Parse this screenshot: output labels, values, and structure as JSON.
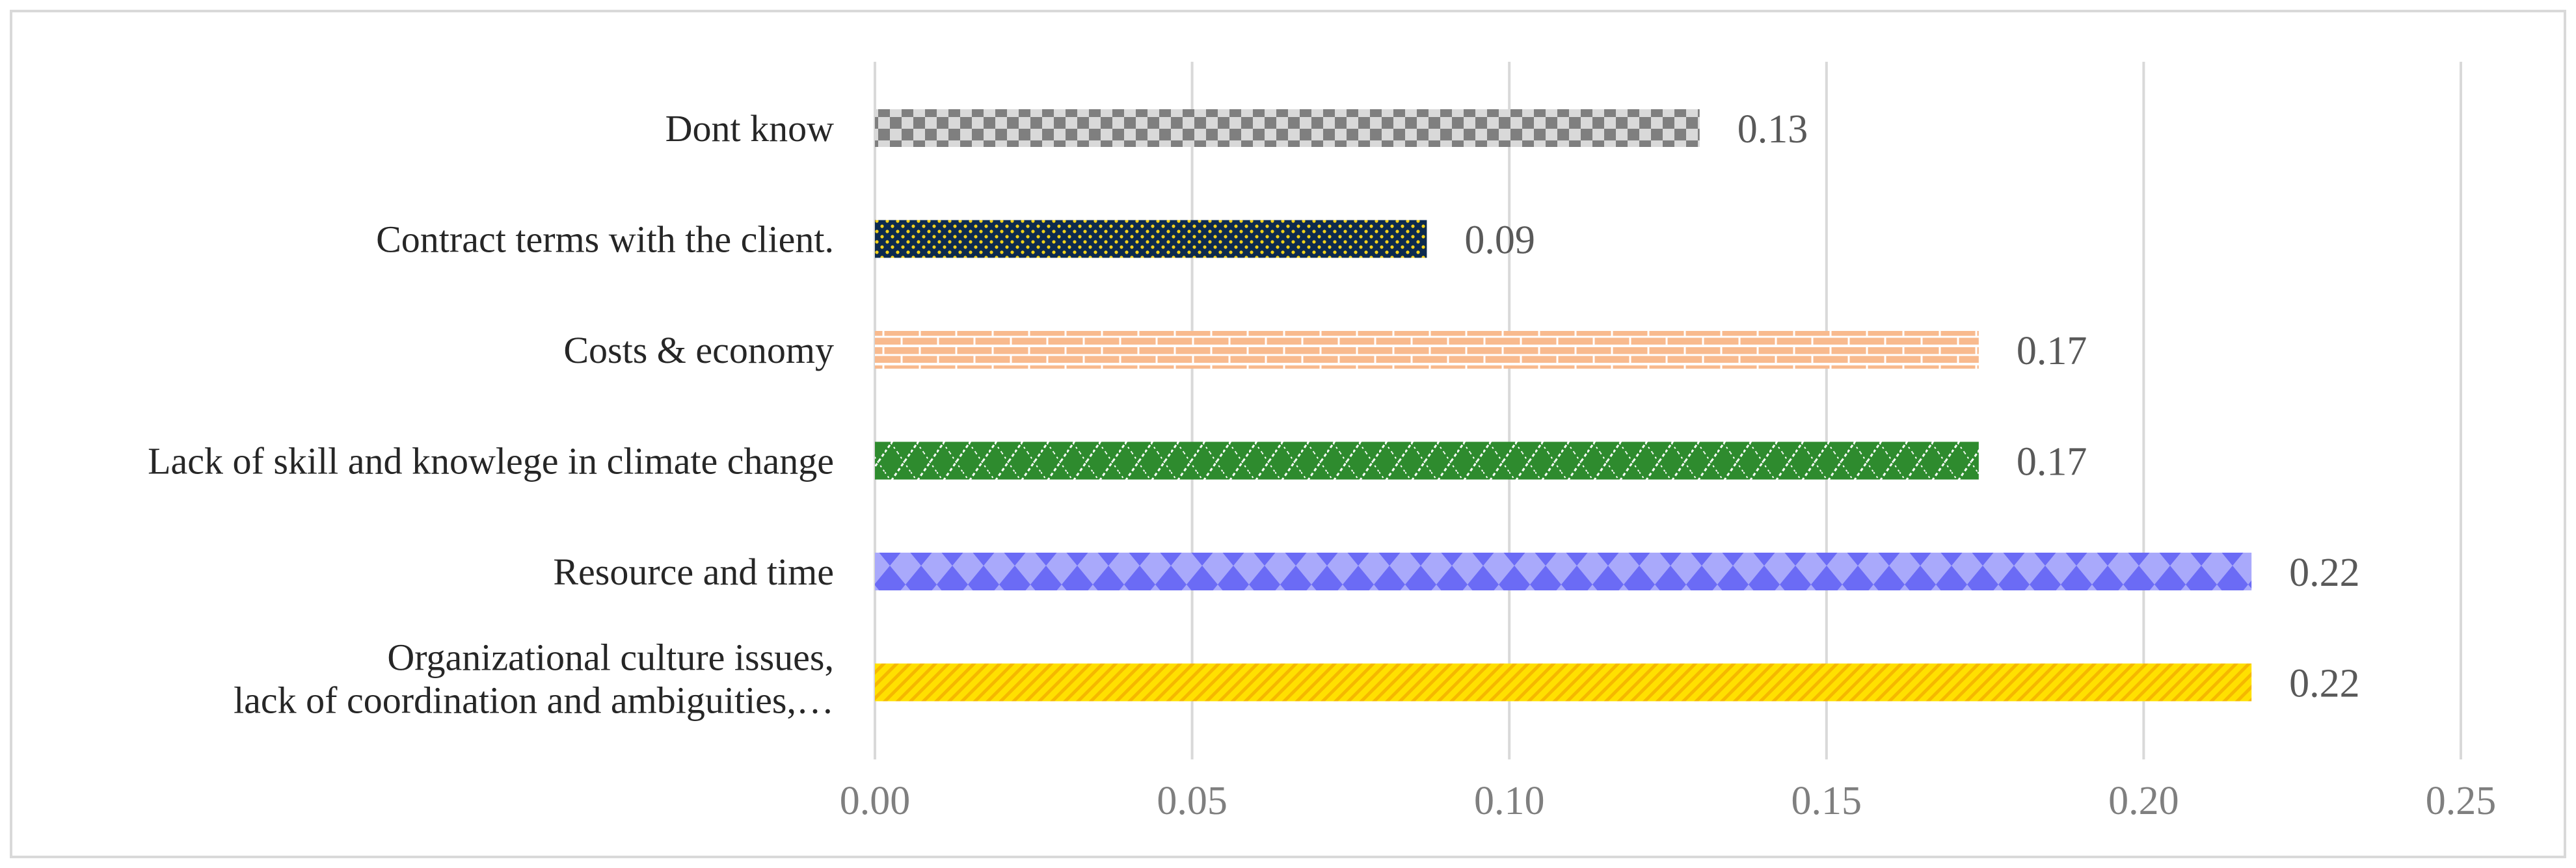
{
  "chart_data": {
    "type": "bar",
    "orientation": "horizontal",
    "title": "",
    "xlabel": "",
    "ylabel": "",
    "xlim": [
      0,
      0.25
    ],
    "x_ticks": [
      "0.00",
      "0.05",
      "0.10",
      "0.15",
      "0.20",
      "0.25"
    ],
    "grid": "vertical",
    "legend": "none",
    "bars": [
      {
        "label_lines": [
          "Dont know"
        ],
        "value": 0.13,
        "value_label": "0.13",
        "pattern": "checker",
        "colors": [
          "#7f7f7f",
          "#d9d9d9"
        ]
      },
      {
        "label_lines": [
          "Contract terms with the client."
        ],
        "value": 0.087,
        "value_label": "0.09",
        "pattern": "dots",
        "colors": [
          "#0d2a4e",
          "#f2d21b"
        ]
      },
      {
        "label_lines": [
          "Costs & economy"
        ],
        "value": 0.174,
        "value_label": "0.17",
        "pattern": "brick",
        "colors": [
          "#f8ba8e",
          "#ffffff"
        ]
      },
      {
        "label_lines": [
          "Lack of skill and knowlege in climate change"
        ],
        "value": 0.174,
        "value_label": "0.17",
        "pattern": "zigzag",
        "colors": [
          "#2e8b2e",
          "#ffffff"
        ]
      },
      {
        "label_lines": [
          "Resource and time"
        ],
        "value": 0.217,
        "value_label": "0.22",
        "pattern": "diamond",
        "colors": [
          "#6b6bf5",
          "#a9a9fb"
        ]
      },
      {
        "label_lines": [
          "Organizational culture issues,",
          "lack of coordination and ambiguities,…"
        ],
        "value": 0.217,
        "value_label": "0.22",
        "pattern": "diagonal",
        "colors": [
          "#ffe000",
          "#f5b800"
        ]
      }
    ]
  }
}
